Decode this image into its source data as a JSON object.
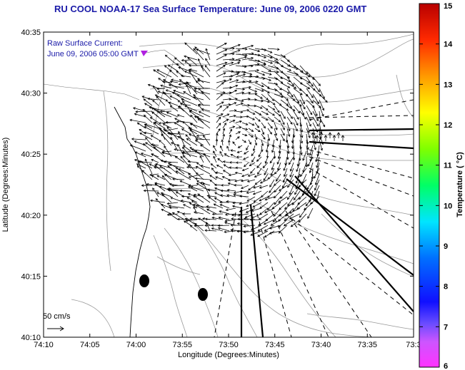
{
  "title": "RU COOL  NOAA-17  Sea Surface Temperature:  June 09, 2006 0220 GMT",
  "legend": {
    "line1": "Raw Surface Current:",
    "line2": "June 09, 2006 05:00 GMT"
  },
  "scale_label": "50 cm/s",
  "axes": {
    "xlabel": "Longitude (Degrees:Minutes)",
    "ylabel": "Latitude (Degrees:Minutes)",
    "xticks": [
      "74:10",
      "74:05",
      "74:00",
      "73:55",
      "73:50",
      "73:45",
      "73:40",
      "73:35",
      "73:3"
    ],
    "yticks": [
      "40:35",
      "40:30",
      "40:25",
      "40:20",
      "40:15",
      "40:10"
    ]
  },
  "colorbar": {
    "label": "Temperature ( °C)",
    "ticks": [
      "15",
      "14",
      "13",
      "12",
      "11",
      "10",
      "9",
      "8",
      "7",
      "6"
    ],
    "min": 6,
    "max": 15
  },
  "colors": {
    "title": "#1a1aa8",
    "legend_marker": "#b020e0"
  }
}
